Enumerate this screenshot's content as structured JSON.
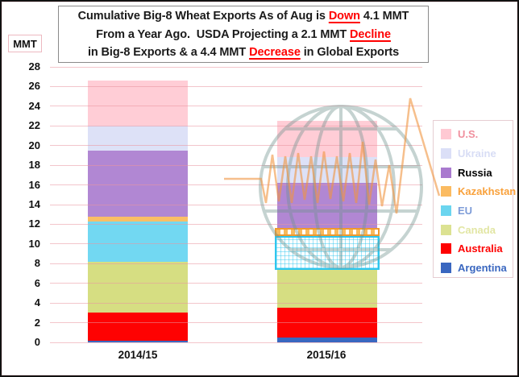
{
  "title": {
    "lines": [
      [
        {
          "text": "Cumulative Big-8 Wheat Exports As of Aug is "
        },
        {
          "text": "Down",
          "emphasis": true
        },
        {
          "text": " 4.1 MMT"
        }
      ],
      [
        {
          "text": "From a Year Ago.  USDA Projecting a 2.1 MMT "
        },
        {
          "text": "Decline",
          "emphasis": true
        }
      ],
      [
        {
          "text": "in Big-8 Exports & a 4.4 MMT "
        },
        {
          "text": "Decrease",
          "emphasis": true
        },
        {
          "text": " in Global Exports"
        }
      ]
    ],
    "emphasis_color": "#FF0000",
    "text_color": "#1A1A1A"
  },
  "y_axis": {
    "unit_label": "MMT",
    "min": 0,
    "max": 28,
    "step": 2
  },
  "x_axis": {
    "categories": [
      "2014/15",
      "2015/16"
    ]
  },
  "legend": {
    "items": [
      {
        "label": "U.S.",
        "swatch_color": "#FFC9D3",
        "text_color": "#F0909E"
      },
      {
        "label": "Ukraine",
        "swatch_color": "#DBDFF7",
        "text_color": "#D8DDF5"
      },
      {
        "label": "Russia",
        "swatch_color": "#A97ACF",
        "text_color": "#000000"
      },
      {
        "label": "Kazakhstan",
        "swatch_color": "#FBBB61",
        "text_color": "#F9A13B"
      },
      {
        "label": "EU",
        "swatch_color": "#6BD5EF",
        "text_color": "#7E9CD8"
      },
      {
        "label": "Canada",
        "swatch_color": "#DCE292",
        "text_color": "#E2E6A4"
      },
      {
        "label": "Australia",
        "swatch_color": "#FE0202",
        "text_color": "#FE0202"
      },
      {
        "label": "Argentina",
        "swatch_color": "#3A67C0",
        "text_color": "#3A67C0"
      }
    ]
  },
  "chart_data": {
    "type": "bar",
    "stacked": true,
    "title": "Cumulative Big-8 Wheat Exports As of Aug is Down 4.1 MMT From a Year Ago. USDA Projecting a 2.1 MMT Decline in Big-8 Exports & a 4.4 MMT Decrease in Global Exports",
    "categories": [
      "2014/15",
      "2015/16"
    ],
    "series": [
      {
        "name": "Argentina",
        "color": "#3A67C0",
        "values": [
          0.2,
          0.5
        ]
      },
      {
        "name": "Australia",
        "color": "#FE0202",
        "values": [
          2.8,
          3.0
        ]
      },
      {
        "name": "Canada",
        "color": "#D6DE82",
        "values": [
          5.2,
          3.9
        ]
      },
      {
        "name": "EU",
        "color": "#72D8F2",
        "values": [
          4.1,
          3.4
        ]
      },
      {
        "name": "Kazakhstan",
        "color": "#FBBE66",
        "values": [
          0.5,
          0.8
        ]
      },
      {
        "name": "Russia",
        "color": "#B187D3",
        "values": [
          6.7,
          4.6
        ]
      },
      {
        "name": "Ukraine",
        "color": "#DDE1F7",
        "values": [
          2.5,
          2.6
        ]
      },
      {
        "name": "U.S.",
        "color": "#FFCDD6",
        "values": [
          4.6,
          3.7
        ]
      }
    ],
    "totals": [
      26.6,
      22.5
    ],
    "xlabel": "",
    "ylabel": "MMT",
    "ylim": [
      0,
      28
    ],
    "ytick_step": 2,
    "grid": true,
    "legend_position": "right",
    "legend_order_top_to_bottom": [
      "U.S.",
      "Ukraine",
      "Russia",
      "Kazakhstan",
      "EU",
      "Canada",
      "Australia",
      "Argentina"
    ],
    "patterned_segments": [
      {
        "category": "2015/16",
        "series": "Kazakhstan",
        "style": "orange-dash-outline"
      },
      {
        "category": "2015/16",
        "series": "EU",
        "style": "cyan-grid-outline"
      }
    ]
  },
  "watermark": {
    "globe_color": "#6F938E",
    "line_color": "#F0953F"
  },
  "style": {
    "grid_color": "rgba(234,150,160,0.55)",
    "background": "#FFFFFF",
    "border_color": "#121212"
  }
}
